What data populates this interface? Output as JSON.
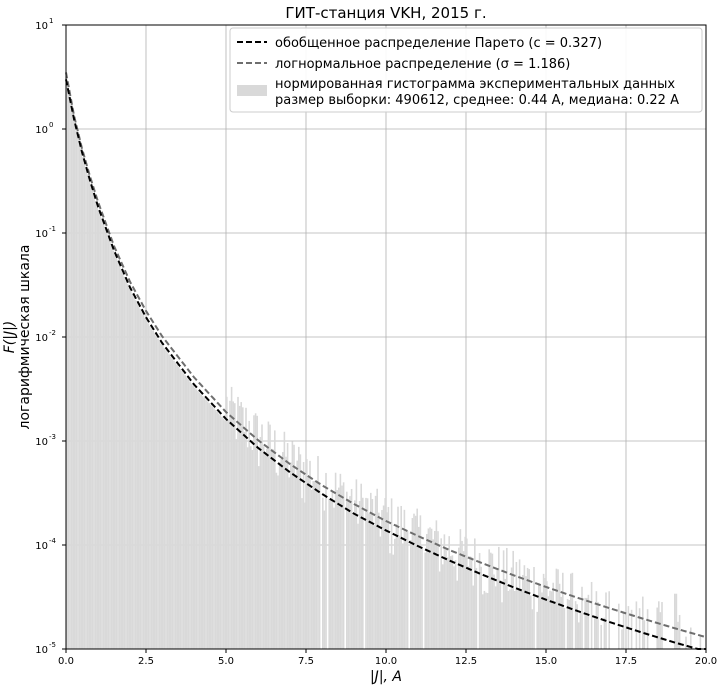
{
  "chart_data": {
    "type": "area",
    "title": "ГИТ-станция VKH, 2015 г.",
    "xlabel": "|J|, A",
    "ylabel_line1": "F(|J|)",
    "ylabel_line2": "логарифмическая шкала",
    "xlim": [
      0,
      20
    ],
    "ylim": [
      1e-05,
      10
    ],
    "yscale": "log",
    "grid": true,
    "legend_position": "top-right",
    "x_ticks": [
      "0.0",
      "2.5",
      "5.0",
      "7.5",
      "10.0",
      "12.5",
      "15.0",
      "17.5",
      "20.0"
    ],
    "y_ticks": [
      "10",
      "10",
      "10",
      "10",
      "10",
      "10",
      "10"
    ],
    "y_tick_exponents": [
      "1",
      "0",
      "-1",
      "-2",
      "-3",
      "-4",
      "-5"
    ],
    "legend": [
      {
        "label": "обобщенное распределение Парето (c = 0.327)",
        "style": "dashed",
        "color": "#000000"
      },
      {
        "label": "логнормальное распределение (σ = 1.186)",
        "style": "dashed",
        "color": "#6e6e6e"
      },
      {
        "label_line1": "нормированная гистограмма экспериментальных данных",
        "label_line2": "размер выборки: 490612, среднее: 0.44  A, медиана: 0.22 A",
        "style": "patch",
        "color": "#d9d9d9"
      }
    ],
    "series": [
      {
        "name": "обобщенное распределение Парето (c = 0.327)",
        "x": [
          0,
          0.25,
          0.5,
          0.75,
          1.0,
          1.5,
          2.0,
          2.5,
          3.0,
          4.0,
          5.0,
          6.0,
          7.0,
          8.0,
          9.0,
          10.0,
          11.0,
          12.0,
          13.0,
          14.0,
          15.0,
          16.0,
          17.0,
          18.0,
          19.0,
          20.0
        ],
        "values": [
          3.0,
          1.25,
          0.6,
          0.32,
          0.18,
          0.068,
          0.03,
          0.0155,
          0.0088,
          0.0035,
          0.00163,
          0.00086,
          0.0005,
          0.00031,
          0.0002,
          0.000138,
          9.75e-05,
          7.05e-05,
          5.2e-05,
          3.9e-05,
          2.98e-05,
          2.31e-05,
          1.81e-05,
          1.44e-05,
          1.16e-05,
          9.5e-06
        ]
      },
      {
        "name": "логнормальное распределение (σ = 1.186)",
        "x": [
          0,
          0.25,
          0.5,
          0.75,
          1.0,
          1.5,
          2.0,
          2.5,
          3.0,
          4.0,
          5.0,
          6.0,
          7.0,
          8.0,
          9.0,
          10.0,
          11.0,
          12.0,
          13.0,
          14.0,
          15.0,
          16.0,
          17.0,
          18.0,
          19.0,
          20.0
        ],
        "values": [
          3.5,
          1.35,
          0.65,
          0.35,
          0.2,
          0.075,
          0.034,
          0.0178,
          0.0102,
          0.0041,
          0.0019,
          0.00102,
          0.0006,
          0.000375,
          0.000248,
          0.00017,
          0.000122,
          8.9e-05,
          6.7e-05,
          5.1e-05,
          3.95e-05,
          3.1e-05,
          2.46e-05,
          1.97e-05,
          1.59e-05,
          1.3e-05
        ]
      }
    ],
    "histogram": {
      "name": "нормированная гистограмма экспериментальных данных",
      "bin_width": 0.05,
      "note_visible": "размер выборки: 490612, среднее: 0.44  A, медиана: 0.22 A"
    }
  }
}
